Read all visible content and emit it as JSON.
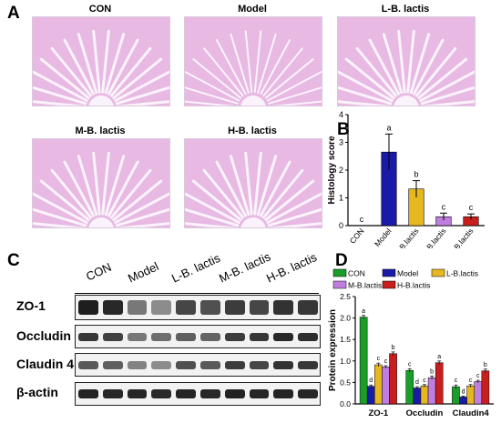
{
  "panels": {
    "a_label": "A",
    "b_label": "B",
    "c_label": "C",
    "d_label": "D"
  },
  "histology": {
    "titles": [
      "CON",
      "Model",
      "L-B. lactis",
      "M-B. lactis",
      "H-B. lactis"
    ]
  },
  "western_blot": {
    "lanes": [
      "CON",
      "Model",
      "L-B. lactis",
      "M-B. lactis",
      "H-B. lactis"
    ],
    "proteins": [
      "ZO-1",
      "Occludin",
      "Claudin 4",
      "β-actin"
    ]
  },
  "colors": {
    "CON": "#1a9e2a",
    "Model": "#1a1aa8",
    "L-B. lactis": "#e6b820",
    "M-B. lactis": "#c07ee0",
    "H-B. lactis": "#c81e1e"
  },
  "chart_data": [
    {
      "id": "B",
      "type": "bar",
      "categories": [
        "CON",
        "Model",
        "L-B.lactis",
        "M-B.lactis",
        "H-B.lactis"
      ],
      "values": [
        0,
        2.65,
        1.32,
        0.32,
        0.32
      ],
      "errors": [
        0,
        0.65,
        0.3,
        0.13,
        0.1
      ],
      "letters": [
        "c",
        "a",
        "b",
        "c",
        "c"
      ],
      "ylabel": "Histology score",
      "ylim": [
        0,
        4
      ],
      "yticks": [
        "0",
        "1",
        "2",
        "3",
        "4"
      ]
    },
    {
      "id": "D",
      "type": "bar",
      "categories": [
        "ZO-1",
        "Occludin",
        "Claudin4"
      ],
      "series": [
        {
          "name": "CON",
          "values": [
            2.02,
            0.78,
            0.4
          ],
          "errors": [
            0.04,
            0.04,
            0.04
          ],
          "letters": [
            "a",
            "c",
            "c"
          ]
        },
        {
          "name": "Model",
          "values": [
            0.41,
            0.37,
            0.16
          ],
          "errors": [
            0.03,
            0.03,
            0.02
          ],
          "letters": [
            "d",
            "d",
            "d"
          ]
        },
        {
          "name": "L-B.lactis",
          "values": [
            0.91,
            0.42,
            0.42
          ],
          "errors": [
            0.04,
            0.03,
            0.03
          ],
          "letters": [
            "c",
            "c",
            "c"
          ]
        },
        {
          "name": "M-B.lactis",
          "values": [
            0.86,
            0.61,
            0.52
          ],
          "errors": [
            0.03,
            0.04,
            0.03
          ],
          "letters": [
            "c",
            "b",
            "c"
          ]
        },
        {
          "name": "H-B.lactis",
          "values": [
            1.17,
            0.96,
            0.77
          ],
          "errors": [
            0.04,
            0.04,
            0.04
          ],
          "letters": [
            "b",
            "a",
            "b"
          ]
        }
      ],
      "ylabel": "Protein expression",
      "ylim": [
        0,
        2.5
      ],
      "yticks": [
        "0.0",
        "0.5",
        "1.0",
        "1.5",
        "2.0",
        "2.5"
      ]
    }
  ]
}
